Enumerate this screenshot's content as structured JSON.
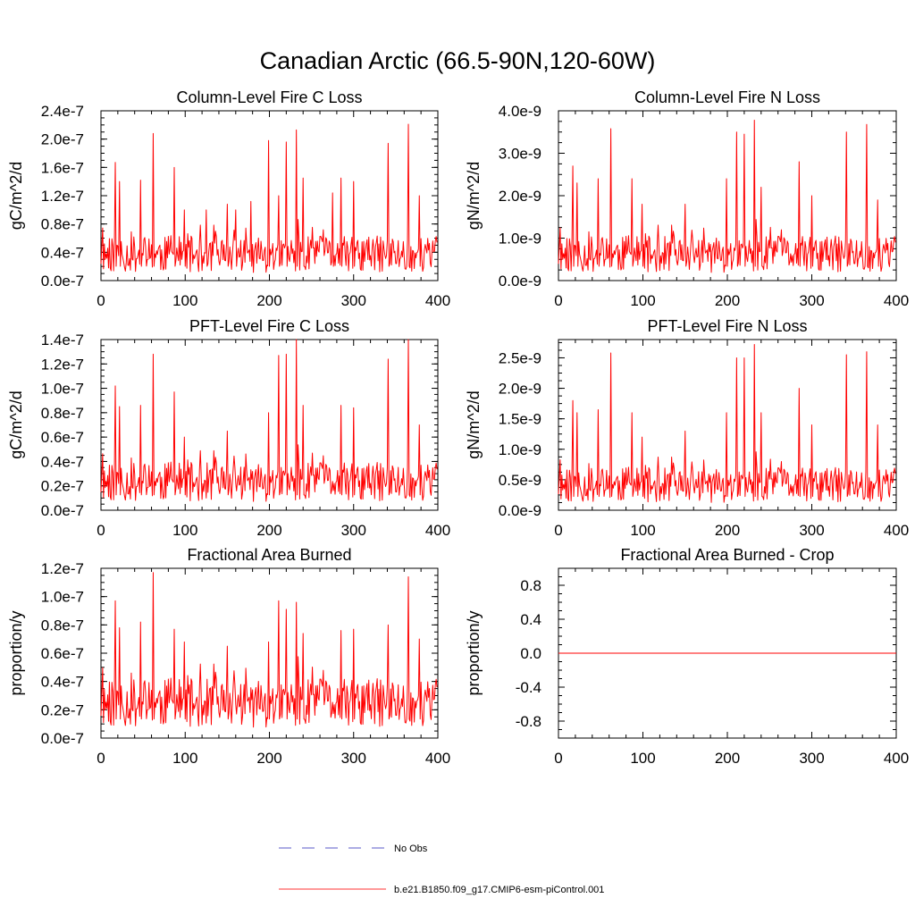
{
  "figure": {
    "title": "Canadian Arctic (66.5-90N,120-60W)",
    "legend": [
      {
        "label": "No Obs",
        "style": "dashed",
        "color": "#5a5ac8"
      },
      {
        "label": "b.e21.B1850.f09_g17.CMIP6-esm-piControl.001",
        "style": "solid",
        "color": "#ff3333"
      }
    ]
  },
  "chart_data": [
    {
      "type": "line",
      "title": "Column-Level Fire C Loss",
      "xlabel": "",
      "ylabel": "gC/m^2/d",
      "xlim": [
        0,
        400
      ],
      "ylim": [
        0,
        2.4e-07
      ],
      "xticks": [
        0,
        100,
        200,
        300,
        400
      ],
      "xtick_labels": [
        "0",
        "100",
        "200",
        "300",
        "400"
      ],
      "yticks": [
        0,
        4e-08,
        8e-08,
        1.2e-07,
        1.6e-07,
        2e-07,
        2.4e-07
      ],
      "ytick_labels": [
        "0.0e-7",
        "0.4e-7",
        "0.8e-7",
        "1.2e-7",
        "1.6e-7",
        "2.0e-7",
        "2.4e-7"
      ],
      "color": "#ff0000",
      "series_seed": 11,
      "base_level": 4.5e-08,
      "peaks": [
        [
          17,
          1.67e-07
        ],
        [
          22,
          1.4e-07
        ],
        [
          47,
          1.42e-07
        ],
        [
          62,
          2.08e-07
        ],
        [
          87,
          1.6e-07
        ],
        [
          99,
          1e-07
        ],
        [
          125,
          1e-07
        ],
        [
          150,
          1.08e-07
        ],
        [
          160,
          1e-07
        ],
        [
          178,
          1.12e-07
        ],
        [
          199,
          1.98e-07
        ],
        [
          211,
          1.2e-07
        ],
        [
          220,
          1.96e-07
        ],
        [
          232,
          2.13e-07
        ],
        [
          240,
          1.45e-07
        ],
        [
          275,
          1.24e-07
        ],
        [
          285,
          1.45e-07
        ],
        [
          300,
          1.4e-07
        ],
        [
          341,
          1.94e-07
        ],
        [
          365,
          2.21e-07
        ],
        [
          378,
          1.2e-07
        ]
      ]
    },
    {
      "type": "line",
      "title": "Column-Level Fire N Loss",
      "xlabel": "",
      "ylabel": "gN/m^2/d",
      "xlim": [
        0,
        400
      ],
      "ylim": [
        0,
        4e-09
      ],
      "xticks": [
        0,
        100,
        200,
        300,
        400
      ],
      "xtick_labels": [
        "0",
        "100",
        "200",
        "300",
        "400"
      ],
      "yticks": [
        0,
        1e-09,
        2e-09,
        3e-09,
        4e-09
      ],
      "ytick_labels": [
        "0.0e-9",
        "1.0e-9",
        "2.0e-9",
        "3.0e-9",
        "4.0e-9"
      ],
      "color": "#ff0000",
      "series_seed": 11,
      "base_level": 7.5e-10,
      "peaks": [
        [
          17,
          2.7e-09
        ],
        [
          22,
          2.3e-09
        ],
        [
          47,
          2.4e-09
        ],
        [
          62,
          3.58e-09
        ],
        [
          87,
          2.4e-09
        ],
        [
          99,
          1.8e-09
        ],
        [
          150,
          1.8e-09
        ],
        [
          199,
          2.4e-09
        ],
        [
          211,
          3.5e-09
        ],
        [
          220,
          3.45e-09
        ],
        [
          232,
          3.78e-09
        ],
        [
          240,
          2.2e-09
        ],
        [
          285,
          2.8e-09
        ],
        [
          300,
          2e-09
        ],
        [
          341,
          3.5e-09
        ],
        [
          365,
          3.68e-09
        ],
        [
          378,
          1.9e-09
        ]
      ]
    },
    {
      "type": "line",
      "title": "PFT-Level Fire C Loss",
      "xlabel": "",
      "ylabel": "gC/m^2/d",
      "xlim": [
        0,
        400
      ],
      "ylim": [
        0,
        1.4e-07
      ],
      "xticks": [
        0,
        100,
        200,
        300,
        400
      ],
      "xtick_labels": [
        "0",
        "100",
        "200",
        "300",
        "400"
      ],
      "yticks": [
        0,
        2e-08,
        4e-08,
        6e-08,
        8e-08,
        1e-07,
        1.2e-07,
        1.4e-07
      ],
      "ytick_labels": [
        "0.0e-7",
        "0.2e-7",
        "0.4e-7",
        "0.6e-7",
        "0.8e-7",
        "1.0e-7",
        "1.2e-7",
        "1.4e-7"
      ],
      "color": "#ff0000",
      "series_seed": 11,
      "base_level": 2.8e-08,
      "peaks": [
        [
          17,
          1.02e-07
        ],
        [
          22,
          8.5e-08
        ],
        [
          47,
          8.6e-08
        ],
        [
          62,
          1.28e-07
        ],
        [
          87,
          9.7e-08
        ],
        [
          99,
          6e-08
        ],
        [
          150,
          6.5e-08
        ],
        [
          199,
          8e-08
        ],
        [
          211,
          1.27e-07
        ],
        [
          220,
          1.28e-07
        ],
        [
          232,
          1.4e-07
        ],
        [
          240,
          8.6e-08
        ],
        [
          285,
          8.6e-08
        ],
        [
          300,
          8.4e-08
        ],
        [
          341,
          1.24e-07
        ],
        [
          365,
          1.4e-07
        ],
        [
          378,
          7e-08
        ]
      ]
    },
    {
      "type": "line",
      "title": "PFT-Level Fire N Loss",
      "xlabel": "",
      "ylabel": "gN/m^2/d",
      "xlim": [
        0,
        400
      ],
      "ylim": [
        0,
        2.8e-09
      ],
      "xticks": [
        0,
        100,
        200,
        300,
        400
      ],
      "xtick_labels": [
        "0",
        "100",
        "200",
        "300",
        "400"
      ],
      "yticks": [
        0,
        5e-10,
        1e-09,
        1.5e-09,
        2e-09,
        2.5e-09
      ],
      "ytick_labels": [
        "0.0e-9",
        "0.5e-9",
        "1.0e-9",
        "1.5e-9",
        "2.0e-9",
        "2.5e-9"
      ],
      "color": "#ff0000",
      "series_seed": 11,
      "base_level": 5e-10,
      "peaks": [
        [
          17,
          1.8e-09
        ],
        [
          22,
          1.6e-09
        ],
        [
          47,
          1.65e-09
        ],
        [
          62,
          2.58e-09
        ],
        [
          87,
          1.6e-09
        ],
        [
          99,
          1.2e-09
        ],
        [
          150,
          1.3e-09
        ],
        [
          199,
          1.6e-09
        ],
        [
          211,
          2.5e-09
        ],
        [
          220,
          2.5e-09
        ],
        [
          232,
          2.72e-09
        ],
        [
          240,
          1.6e-09
        ],
        [
          285,
          2e-09
        ],
        [
          300,
          1.4e-09
        ],
        [
          341,
          2.55e-09
        ],
        [
          365,
          2.6e-09
        ],
        [
          378,
          1.4e-09
        ]
      ]
    },
    {
      "type": "line",
      "title": "Fractional Area Burned",
      "xlabel": "",
      "ylabel": "proportion/y",
      "xlim": [
        0,
        400
      ],
      "ylim": [
        0,
        1.2e-07
      ],
      "xticks": [
        0,
        100,
        200,
        300,
        400
      ],
      "xtick_labels": [
        "0",
        "100",
        "200",
        "300",
        "400"
      ],
      "yticks": [
        0,
        2e-08,
        4e-08,
        6e-08,
        8e-08,
        1e-07,
        1.2e-07
      ],
      "ytick_labels": [
        "0.0e-7",
        "0.2e-7",
        "0.4e-7",
        "0.6e-7",
        "0.8e-7",
        "1.0e-7",
        "1.2e-7"
      ],
      "color": "#ff0000",
      "series_seed": 11,
      "base_level": 3e-08,
      "peaks": [
        [
          17,
          9.7e-08
        ],
        [
          22,
          7.8e-08
        ],
        [
          47,
          8.2e-08
        ],
        [
          62,
          1.17e-07
        ],
        [
          87,
          7.7e-08
        ],
        [
          99,
          6.8e-08
        ],
        [
          150,
          6.5e-08
        ],
        [
          199,
          6.8e-08
        ],
        [
          211,
          9.7e-08
        ],
        [
          220,
          9.1e-08
        ],
        [
          232,
          9.6e-08
        ],
        [
          240,
          7.4e-08
        ],
        [
          285,
          7.6e-08
        ],
        [
          300,
          7.7e-08
        ],
        [
          341,
          8e-08
        ],
        [
          365,
          1.14e-07
        ],
        [
          378,
          7e-08
        ]
      ]
    },
    {
      "type": "line",
      "title": "Fractional Area Burned - Crop",
      "xlabel": "",
      "ylabel": "proportion/y",
      "xlim": [
        0,
        400
      ],
      "ylim": [
        -1.0,
        1.0
      ],
      "xticks": [
        0,
        100,
        200,
        300,
        400
      ],
      "xtick_labels": [
        "0",
        "100",
        "200",
        "300",
        "400"
      ],
      "yticks": [
        -0.8,
        -0.4,
        0.0,
        0.4,
        0.8
      ],
      "ytick_labels": [
        "-0.8",
        "-0.4",
        "0.0",
        "0.4",
        "0.8"
      ],
      "color": "#ff0000",
      "constant_value": 0.0
    }
  ]
}
